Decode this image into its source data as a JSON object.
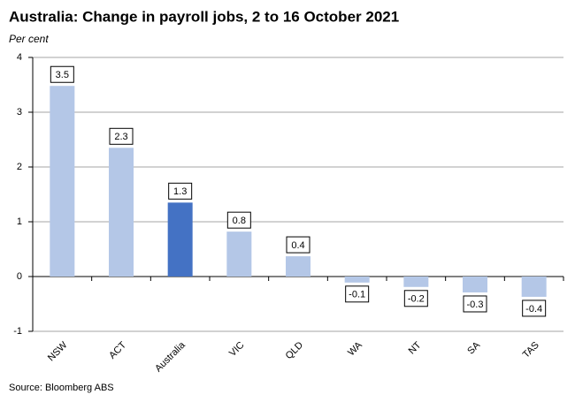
{
  "chart_data": {
    "type": "bar",
    "title": "Australia:  Change in payroll jobs,  2 to 16 October 2021",
    "y_axis_label": "Per cent",
    "source": "Source: Bloomberg ABS",
    "categories": [
      "NSW",
      "ACT",
      "Australia",
      "VIC",
      "QLD",
      "WA",
      "NT",
      "SA",
      "TAS"
    ],
    "values": [
      3.48,
      2.35,
      1.35,
      0.82,
      0.37,
      -0.11,
      -0.19,
      -0.29,
      -0.37
    ],
    "value_labels": [
      "3.5",
      "2.3",
      "1.3",
      "0.8",
      "0.4",
      "-0.1",
      "-0.2",
      "-0.3",
      "-0.4"
    ],
    "colors": [
      "#b4c7e7",
      "#b4c7e7",
      "#4472c4",
      "#b4c7e7",
      "#b4c7e7",
      "#b4c7e7",
      "#b4c7e7",
      "#b4c7e7",
      "#b4c7e7"
    ],
    "ylim": [
      -1,
      4
    ],
    "yticks": [
      -1,
      0,
      1,
      2,
      3,
      4
    ],
    "grid": true
  }
}
